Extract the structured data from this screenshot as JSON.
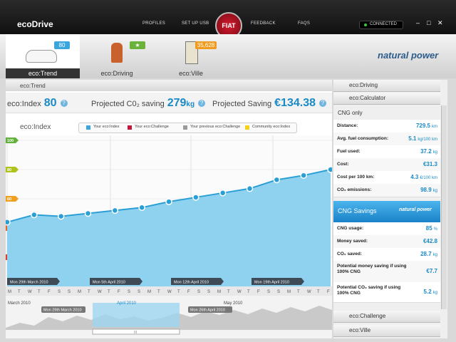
{
  "header": {
    "logo": "ecoDrive",
    "nav": [
      "PROFILES",
      "SET UP USB",
      "FEEDBACK",
      "FAQS"
    ],
    "brand": "FIAT",
    "status": "CONNECTED",
    "window_controls": [
      "–",
      "□",
      "✕"
    ]
  },
  "tabs": [
    {
      "label": "eco:Trend",
      "badge": "80"
    },
    {
      "label": "eco:Driving",
      "badge": "★"
    },
    {
      "label": "eco:Ville",
      "badge": "35,628"
    }
  ],
  "partner": "natural power",
  "trend": {
    "title": "eco:Trend",
    "help": "?",
    "metrics": [
      {
        "label": "eco:Index",
        "value": "80"
      },
      {
        "label": "Projected C0₂ saving",
        "value": "279",
        "unit": "kg"
      },
      {
        "label": "Projected Saving",
        "value": "€134.38"
      }
    ]
  },
  "chart": {
    "type": "line",
    "title": "eco:Index",
    "legend": [
      "Your eco:Index",
      "Your eco:Challenge",
      "Your previous eco:Challenge",
      "Community eco:Index"
    ],
    "legend_colors": [
      "#3aa6dd",
      "#c8143c",
      "#9a9a9a",
      "#f2d21b"
    ],
    "color": "#2a9fd6",
    "ylim": [
      0,
      100
    ],
    "yticks": [
      20,
      40,
      60,
      80,
      100
    ],
    "values": [
      44,
      49,
      48,
      50,
      52,
      54,
      58,
      61,
      64,
      67,
      73,
      76,
      80
    ],
    "date_labels": [
      "Mon 29th March 2010",
      "Mon 5th April 2010",
      "Mon 12th April 2010",
      "Mon 19th April 2010"
    ],
    "weekdays": [
      "M",
      "T",
      "W",
      "T",
      "F",
      "S",
      "S"
    ]
  },
  "timeline": {
    "months": [
      "March 2010",
      "April 2010",
      "May 2010"
    ],
    "range": [
      "Mon 29th March 2010",
      "Mon 26th April 2010"
    ],
    "handle": "III"
  },
  "sidebar": {
    "driving": "eco:Driving",
    "calculator": "eco:Calculator",
    "cng_only": {
      "title": "CNG only",
      "rows": [
        {
          "label": "Distance:",
          "value": "729.5",
          "unit": "km"
        },
        {
          "label": "Avg. fuel consumption:",
          "value": "5.1",
          "unit": "kg/100 km"
        },
        {
          "label": "Fuel used:",
          "value": "37.2",
          "unit": "kg"
        },
        {
          "label": "Cost:",
          "value": "€31.3"
        },
        {
          "label": "Cost per 100 km:",
          "value": "4.3",
          "unit": "€/100 km"
        },
        {
          "label": "CO₂ emissions:",
          "value": "98.9",
          "unit": "kg"
        }
      ]
    },
    "savings": {
      "title": "CNG Savings",
      "rows": [
        {
          "label": "CNG usage:",
          "value": "85",
          "unit": "%"
        },
        {
          "label": "Money saved:",
          "value": "€42.8"
        },
        {
          "label": "CO₂ saved:",
          "value": "28.7",
          "unit": "kg"
        },
        {
          "label": "Potential money saving if using 100% CNG",
          "value": "€7.7"
        },
        {
          "label": "Potential CO₂ saving if using 100% CNG",
          "value": "5.2",
          "unit": "kg"
        }
      ]
    },
    "challenge": "eco:Challenge",
    "ville": "eco:Ville"
  }
}
